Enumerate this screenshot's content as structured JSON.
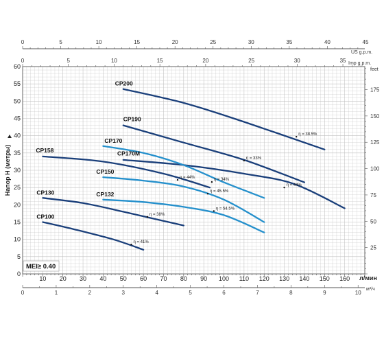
{
  "chart_data": {
    "type": "line",
    "ylabel": "Напор H (метры)",
    "bottom_unit": "л/мин",
    "bottom_sub_unit": "м³/ч",
    "top_unit": "US g.p.m.",
    "top2_unit": "Imp g.p.m.",
    "right_unit": "feet",
    "mei_label": "MEI≥ 0.40",
    "xlim": [
      0,
      170
    ],
    "ylim": [
      0,
      60
    ],
    "x_ticks": [
      "10",
      "20",
      "30",
      "40",
      "50",
      "60",
      "70",
      "80",
      "90",
      "100",
      "110",
      "120",
      "130",
      "140",
      "150",
      "160"
    ],
    "y_ticks": [
      "0",
      "5",
      "10",
      "15",
      "20",
      "25",
      "30",
      "35",
      "40",
      "45",
      "50",
      "55",
      "60"
    ],
    "feet_ticks": [
      "25",
      "50",
      "75",
      "100",
      "125",
      "150",
      "175"
    ],
    "us_gpm_ticks": [
      "0",
      "5",
      "10",
      "15",
      "20",
      "25",
      "30",
      "35",
      "40",
      "45"
    ],
    "imp_gpm_ticks": [
      "0",
      "5",
      "10",
      "15",
      "20",
      "25",
      "30",
      "35"
    ],
    "m3h_ticks": [
      "0",
      "1",
      "2",
      "3",
      "4",
      "5",
      "6",
      "7",
      "8",
      "9",
      "10"
    ],
    "colors": {
      "dark": "#1a3f7a",
      "light": "#2590cc",
      "grid": "#bfbfbf",
      "frame": "#666666"
    },
    "series": [
      {
        "name": "CP200",
        "color": "dark",
        "x": [
          50,
          80,
          110,
          150
        ],
        "y": [
          53.5,
          49.5,
          44,
          36
        ],
        "eff": {
          "label": "η = 38.5%",
          "x": 136,
          "y": 39.7
        }
      },
      {
        "name": "CP190",
        "color": "dark",
        "x": [
          50,
          80,
          110,
          140
        ],
        "y": [
          43,
          38,
          33,
          26.5
        ],
        "eff": {
          "label": "η = 33%",
          "x": 110,
          "y": 32.8
        }
      },
      {
        "name": "CP158",
        "color": "dark",
        "x": [
          10,
          40,
          70,
          93
        ],
        "y": [
          34,
          32.5,
          29,
          25
        ],
        "eff": {
          "label": "η = 44%",
          "x": 77,
          "y": 27.2
        }
      },
      {
        "name": "CP170M",
        "color": "dark",
        "x": [
          50,
          80,
          110,
          135,
          160
        ],
        "y": [
          33,
          31.5,
          29,
          26,
          19
        ],
        "eff": {
          "label": "η = 44%",
          "x": 130,
          "y": 25
        }
      },
      {
        "name": "CP170",
        "color": "light",
        "x": [
          40,
          60,
          80,
          100,
          120
        ],
        "y": [
          37,
          35,
          31.5,
          26.5,
          22
        ],
        "eff": {
          "label": "η = 34%",
          "x": 94,
          "y": 26.6
        }
      },
      {
        "name": "CP150",
        "color": "light",
        "x": [
          40,
          60,
          80,
          100,
          120
        ],
        "y": [
          28,
          27,
          25.3,
          21.5,
          15
        ],
        "eff": {
          "label": "η = 45.5%",
          "x": 92,
          "y": 23.2
        }
      },
      {
        "name": "CP132",
        "color": "light",
        "x": [
          40,
          60,
          80,
          100,
          120
        ],
        "y": [
          21.5,
          20.8,
          19.4,
          17,
          12
        ],
        "eff": {
          "label": "η = 54.5%",
          "x": 95,
          "y": 18.2
        }
      },
      {
        "name": "CP130",
        "color": "dark",
        "x": [
          10,
          30,
          50,
          80
        ],
        "y": [
          22,
          20.5,
          18,
          14
        ],
        "eff": {
          "label": "η = 38%",
          "x": 62,
          "y": 16.5
        }
      },
      {
        "name": "CP100",
        "color": "dark",
        "x": [
          10,
          25,
          45,
          60
        ],
        "y": [
          15,
          13,
          10,
          7
        ],
        "eff": {
          "label": "η = 41%",
          "x": 54,
          "y": 8.5
        }
      }
    ]
  }
}
